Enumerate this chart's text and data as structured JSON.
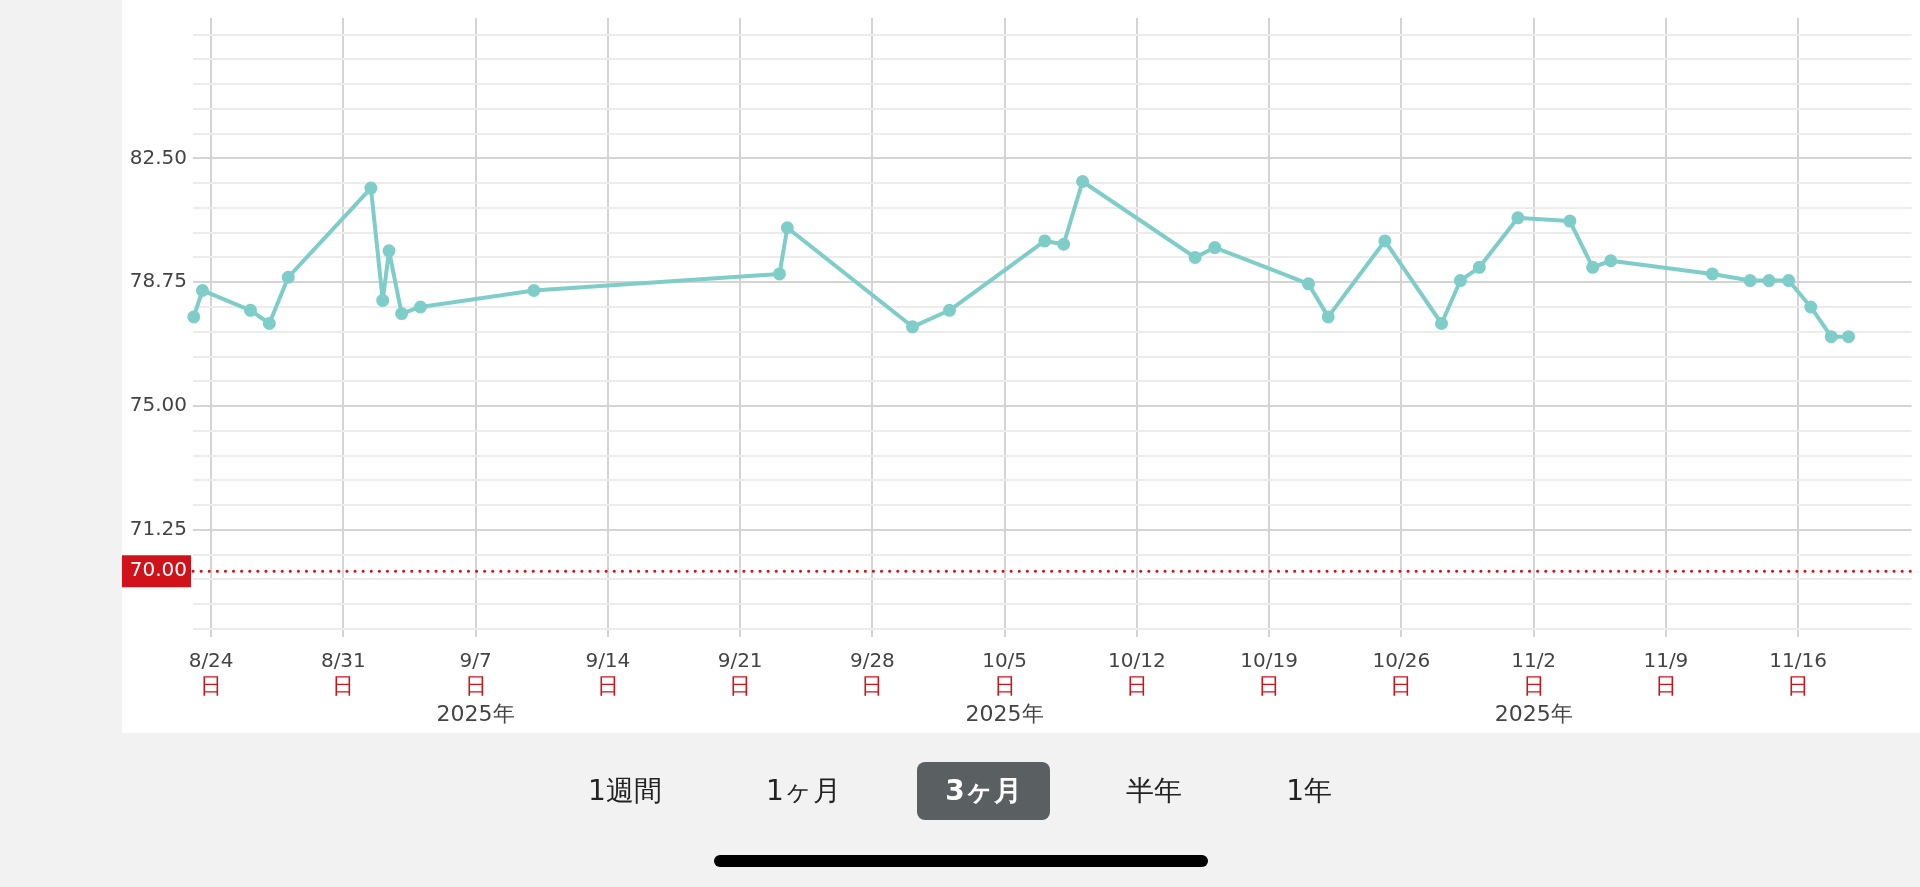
{
  "chart_data": {
    "type": "line",
    "x": [
      "2025-08-23T02:00",
      "2025-08-23T13:00",
      "2025-08-26T02:00",
      "2025-08-27T02:00",
      "2025-08-28T02:00",
      "2025-09-01T11:00",
      "2025-09-02T02:00",
      "2025-09-02T10:00",
      "2025-09-03T02:00",
      "2025-09-04T02:00",
      "2025-09-10T02:00",
      "2025-09-23T02:00",
      "2025-09-23T12:00",
      "2025-09-30T03:00",
      "2025-10-02T02:00",
      "2025-10-07T03:00",
      "2025-10-08T03:00",
      "2025-10-09T03:00",
      "2025-10-15T02:00",
      "2025-10-16T03:00",
      "2025-10-21T02:00",
      "2025-10-22T03:00",
      "2025-10-25T03:00",
      "2025-10-28T03:00",
      "2025-10-29T03:00",
      "2025-10-30T03:00",
      "2025-11-01T04:00",
      "2025-11-03T22:00",
      "2025-11-05T03:00",
      "2025-11-06T02:00",
      "2025-11-11T11:00",
      "2025-11-13T11:00",
      "2025-11-14T11:00",
      "2025-11-15T12:00",
      "2025-11-16T16:00",
      "2025-11-17T18:00",
      "2025-11-18T16:00"
    ],
    "series": [
      {
        "color": "#7ecdc8",
        "values": [
          77.7,
          78.5,
          77.9,
          77.5,
          78.9,
          81.6,
          78.2,
          79.7,
          77.8,
          78.0,
          78.5,
          79.0,
          80.4,
          77.4,
          77.9,
          80.0,
          79.9,
          81.8,
          79.5,
          79.8,
          78.7,
          77.7,
          80.0,
          77.5,
          78.8,
          79.2,
          80.7,
          80.6,
          79.2,
          79.4,
          79.0,
          78.8,
          78.8,
          78.8,
          78.0,
          77.1,
          77.1
        ]
      }
    ],
    "xlim": [
      "2025-08-23T01:00",
      "2025-11-22T00:00"
    ],
    "xticks": [
      {
        "value": "2025-08-24",
        "label": "8/24"
      },
      {
        "value": "2025-08-31",
        "label": "8/31"
      },
      {
        "value": "2025-09-07",
        "label": "9/7"
      },
      {
        "value": "2025-09-14",
        "label": "9/14"
      },
      {
        "value": "2025-09-21",
        "label": "9/21"
      },
      {
        "value": "2025-09-28",
        "label": "9/28"
      },
      {
        "value": "2025-10-05",
        "label": "10/5"
      },
      {
        "value": "2025-10-12",
        "label": "10/12"
      },
      {
        "value": "2025-10-19",
        "label": "10/19"
      },
      {
        "value": "2025-10-26",
        "label": "10/26"
      },
      {
        "value": "2025-11-02",
        "label": "11/2"
      },
      {
        "value": "2025-11-09",
        "label": "11/9"
      },
      {
        "value": "2025-11-16",
        "label": "11/16"
      }
    ],
    "ylim": [
      68.25,
      86.75
    ],
    "yticks": [
      {
        "value": 68.25,
        "label": null
      },
      {
        "value": 69.0,
        "label": null
      },
      {
        "value": 69.75,
        "label": null
      },
      {
        "value": 70.5,
        "label": null
      },
      {
        "value": 71.25,
        "label": "71.25"
      },
      {
        "value": 72.0,
        "label": null
      },
      {
        "value": 72.75,
        "label": null
      },
      {
        "value": 73.5,
        "label": null
      },
      {
        "value": 74.25,
        "label": null
      },
      {
        "value": 75.0,
        "label": "75.00"
      },
      {
        "value": 75.75,
        "label": null
      },
      {
        "value": 76.5,
        "label": null
      },
      {
        "value": 77.25,
        "label": null
      },
      {
        "value": 78.0,
        "label": null
      },
      {
        "value": 78.75,
        "label": "78.75"
      },
      {
        "value": 79.5,
        "label": null
      },
      {
        "value": 80.25,
        "label": null
      },
      {
        "value": 81.0,
        "label": null
      },
      {
        "value": 81.75,
        "label": null
      },
      {
        "value": 82.5,
        "label": "82.50"
      },
      {
        "value": 83.25,
        "label": null
      },
      {
        "value": 84.0,
        "label": null
      },
      {
        "value": 84.75,
        "label": null
      },
      {
        "value": 85.5,
        "label": null
      },
      {
        "value": 86.25,
        "label": null
      }
    ],
    "ref_lines": [
      {
        "axis": "y",
        "value": 70,
        "label": "70.00",
        "color": "#d0121b",
        "line_style": "dotted"
      }
    ],
    "grid": true,
    "legend": false,
    "marker": "circle",
    "line_style": "solid",
    "annotations": [
      "日",
      "日",
      "日",
      "日",
      "日",
      "日",
      "日",
      "日",
      "日",
      "日",
      "日",
      "日",
      "日",
      "2025年",
      "2025年",
      "2025年",
      "1週間",
      "1ヶ月",
      "3ヶ月",
      "半年",
      "1年"
    ]
  }
}
